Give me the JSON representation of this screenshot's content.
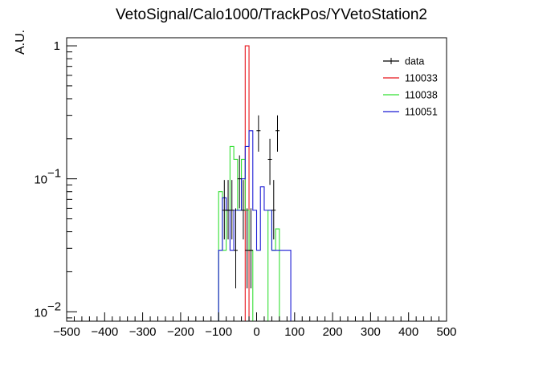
{
  "chart_data": {
    "type": "line",
    "title": "VetoSignal/Calo1000/TrackPos/YVetoStation2",
    "xlabel": "",
    "ylabel": "A.U.",
    "xlim": [
      -500,
      500
    ],
    "ylim": [
      0.0085,
      1.15
    ],
    "yscale": "log",
    "grid": false,
    "legend_position": "top-right",
    "x_ticks": [
      -500,
      -400,
      -300,
      -200,
      -100,
      0,
      100,
      200,
      300,
      400,
      500
    ],
    "x_tick_labels": [
      "−500",
      "−400",
      "−300",
      "−200",
      "−100",
      "0",
      "100",
      "200",
      "300",
      "400",
      "500"
    ],
    "y_ticks": [
      0.01,
      0.1,
      1
    ],
    "y_tick_labels": [
      {
        "base": "10",
        "exp": "−2",
        "plain": ""
      },
      {
        "base": "10",
        "exp": "−1",
        "plain": ""
      },
      {
        "base": "",
        "exp": "",
        "plain": "1"
      }
    ],
    "series": [
      {
        "name": "data",
        "kind": "points",
        "color": "#000000",
        "points": [
          {
            "x": -85,
            "y": 0.058,
            "lo": 0.035,
            "hi": 0.098
          },
          {
            "x": -75,
            "y": 0.058,
            "lo": 0.035,
            "hi": 0.098
          },
          {
            "x": -65,
            "y": 0.058,
            "lo": 0.035,
            "hi": 0.098
          },
          {
            "x": -55,
            "y": 0.029,
            "lo": 0.015,
            "hi": 0.06
          },
          {
            "x": -45,
            "y": 0.1,
            "lo": 0.06,
            "hi": 0.15
          },
          {
            "x": -35,
            "y": 0.058,
            "lo": 0.035,
            "hi": 0.098
          },
          {
            "x": -25,
            "y": 0.029,
            "lo": 0.015,
            "hi": 0.06
          },
          {
            "x": -15,
            "y": 0.029,
            "lo": 0.015,
            "hi": 0.06
          },
          {
            "x": 5,
            "y": 0.23,
            "lo": 0.16,
            "hi": 0.3
          },
          {
            "x": 35,
            "y": 0.14,
            "lo": 0.09,
            "hi": 0.2
          },
          {
            "x": 45,
            "y": 0.058,
            "lo": 0.035,
            "hi": 0.098
          },
          {
            "x": 55,
            "y": 0.23,
            "lo": 0.16,
            "hi": 0.3
          }
        ]
      },
      {
        "name": "110033",
        "kind": "hist",
        "color": "#e8161c",
        "bins": [
          {
            "x0": -30,
            "x1": -20,
            "y": 1.0
          }
        ]
      },
      {
        "name": "110038",
        "kind": "hist",
        "color": "#33e033",
        "bins": [
          {
            "x0": -100,
            "x1": -90,
            "y": 0.08
          },
          {
            "x0": -90,
            "x1": -80,
            "y": 0.029
          },
          {
            "x0": -80,
            "x1": -70,
            "y": 0.058
          },
          {
            "x0": -70,
            "x1": -60,
            "y": 0.175
          },
          {
            "x0": -60,
            "x1": -50,
            "y": 0.14
          },
          {
            "x0": -50,
            "x1": -40,
            "y": 0.058
          },
          {
            "x0": -40,
            "x1": -30,
            "y": 0.14
          },
          {
            "x0": -30,
            "x1": -20,
            "y": 0.058
          },
          {
            "x0": -20,
            "x1": -10,
            "y": 0.029
          },
          {
            "x0": 30,
            "x1": 40,
            "y": 0.058
          },
          {
            "x0": 40,
            "x1": 50,
            "y": 0.029
          },
          {
            "x0": 50,
            "x1": 60,
            "y": 0.042
          }
        ]
      },
      {
        "name": "110051",
        "kind": "hist",
        "color": "#1a1ad4",
        "bins": [
          {
            "x0": -100,
            "x1": -90,
            "y": 0.029
          },
          {
            "x0": -90,
            "x1": -80,
            "y": 0.072
          },
          {
            "x0": -80,
            "x1": -70,
            "y": 0.058
          },
          {
            "x0": -70,
            "x1": -60,
            "y": 0.029
          },
          {
            "x0": -60,
            "x1": -50,
            "y": 0.058
          },
          {
            "x0": -50,
            "x1": -40,
            "y": 0.058
          },
          {
            "x0": -40,
            "x1": -30,
            "y": 0.1
          },
          {
            "x0": -30,
            "x1": -20,
            "y": 0.175
          },
          {
            "x0": -20,
            "x1": -10,
            "y": 0.23
          },
          {
            "x0": -10,
            "x1": 0,
            "y": 0.058
          },
          {
            "x0": 0,
            "x1": 10,
            "y": 0.029
          },
          {
            "x0": 10,
            "x1": 20,
            "y": 0.087
          },
          {
            "x0": 20,
            "x1": 30,
            "y": 0.058
          },
          {
            "x0": 30,
            "x1": 40,
            "y": 0.058
          },
          {
            "x0": 40,
            "x1": 50,
            "y": 0.029
          },
          {
            "x0": 50,
            "x1": 60,
            "y": 0.029
          },
          {
            "x0": 60,
            "x1": 70,
            "y": 0.029
          },
          {
            "x0": 70,
            "x1": 80,
            "y": 0.029
          },
          {
            "x0": 80,
            "x1": 90,
            "y": 0.029
          }
        ]
      }
    ]
  }
}
